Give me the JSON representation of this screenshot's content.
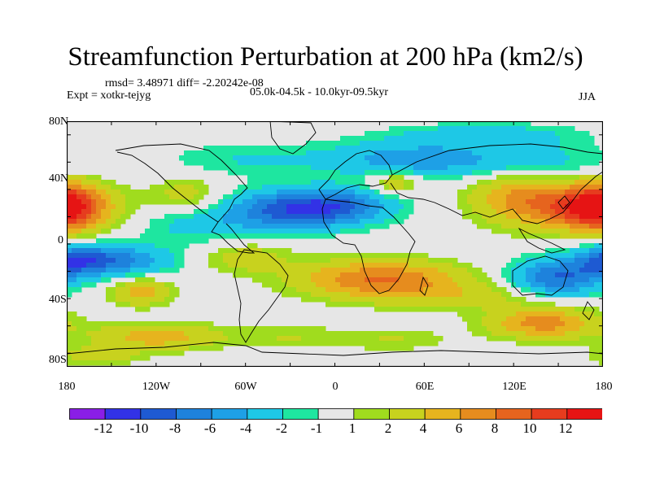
{
  "figure": {
    "title": "Streamfunction Perturbation at 200 hPa (km2/s)",
    "stats": "rmsd= 3.48971 diff= -2.20242e-08",
    "experiment": "Expt = xotkr-tejyg",
    "period": "05.0k-04.5k - 10.0kyr-09.5kyr",
    "season": "JJA"
  },
  "axes": {
    "lat_ticks": [
      "80N",
      "40N",
      "0",
      "40S",
      "80S"
    ],
    "lon_ticks": [
      "180",
      "120W",
      "60W",
      "0",
      "60E",
      "120E",
      "180"
    ]
  },
  "colorbar": {
    "labels": [
      "-12",
      "-10",
      "-8",
      "-6",
      "-4",
      "-2",
      "-1",
      "1",
      "2",
      "4",
      "6",
      "8",
      "10",
      "12"
    ],
    "colors": [
      "#8a1ee6",
      "#3232e6",
      "#1e5ad2",
      "#1e82dc",
      "#1ea0e6",
      "#1ec8e6",
      "#1ee6a0",
      "#e6e6e6",
      "#a0dc1e",
      "#c8d21e",
      "#e6b41e",
      "#e68c1e",
      "#e6641e",
      "#e63c1e",
      "#e61414"
    ]
  },
  "chart_data": {
    "type": "heatmap",
    "title": "Streamfunction Perturbation at 200 hPa (km2/s)",
    "projection": "cylindrical equidistant",
    "lon_range": [
      -180,
      180
    ],
    "lat_range": [
      -90,
      90
    ],
    "units": "km2/s",
    "levels": [
      -12,
      -10,
      -8,
      -6,
      -4,
      -2,
      -1,
      1,
      2,
      4,
      6,
      8,
      10,
      12
    ],
    "features": [
      {
        "lon": 170,
        "lat": 27,
        "value": 11,
        "sigma_lon": 28,
        "sigma_lat": 12
      },
      {
        "lon": -180,
        "lat": 28,
        "value": 6,
        "sigma_lon": 14,
        "sigma_lat": 12
      },
      {
        "lon": 120,
        "lat": 35,
        "value": 5,
        "sigma_lon": 22,
        "sigma_lat": 14
      },
      {
        "lon": -30,
        "lat": 25,
        "value": -8,
        "sigma_lon": 28,
        "sigma_lat": 10
      },
      {
        "lon": 5,
        "lat": 28,
        "value": -6,
        "sigma_lon": 26,
        "sigma_lat": 9
      },
      {
        "lon": -90,
        "lat": 15,
        "value": -3,
        "sigma_lon": 30,
        "sigma_lat": 10
      },
      {
        "lon": -150,
        "lat": -12,
        "value": -7,
        "sigma_lon": 28,
        "sigma_lat": 8
      },
      {
        "lon": -175,
        "lat": -12,
        "value": -5,
        "sigma_lon": 15,
        "sigma_lat": 8
      },
      {
        "lon": 150,
        "lat": -25,
        "value": -8,
        "sigma_lon": 22,
        "sigma_lat": 10
      },
      {
        "lon": 30,
        "lat": -25,
        "value": 8,
        "sigma_lon": 38,
        "sigma_lat": 9
      },
      {
        "lon": -60,
        "lat": -10,
        "value": 3,
        "sigma_lon": 22,
        "sigma_lat": 8
      },
      {
        "lon": -130,
        "lat": -35,
        "value": 5,
        "sigma_lon": 14,
        "sigma_lat": 7
      },
      {
        "lon": -100,
        "lat": 35,
        "value": 3,
        "sigma_lon": 16,
        "sigma_lat": 10
      },
      {
        "lon": -60,
        "lat": 62,
        "value": -2,
        "sigma_lon": 40,
        "sigma_lat": 9
      },
      {
        "lon": 50,
        "lat": 62,
        "value": -5,
        "sigma_lon": 40,
        "sigma_lat": 9
      },
      {
        "lon": 40,
        "lat": 45,
        "value": 4,
        "sigma_lon": 12,
        "sigma_lat": 6
      },
      {
        "lon": 130,
        "lat": 60,
        "value": -3,
        "sigma_lon": 38,
        "sigma_lat": 10
      },
      {
        "lon": 80,
        "lat": -38,
        "value": 3,
        "sigma_lon": 50,
        "sigma_lat": 7
      },
      {
        "lon": 140,
        "lat": -58,
        "value": 7,
        "sigma_lon": 26,
        "sigma_lat": 8
      },
      {
        "lon": -120,
        "lat": -68,
        "value": 5,
        "sigma_lon": 30,
        "sigma_lat": 7
      },
      {
        "lon": -30,
        "lat": -68,
        "value": 2,
        "sigma_lon": 28,
        "sigma_lat": 6
      },
      {
        "lon": 40,
        "lat": -70,
        "value": 2,
        "sigma_lon": 25,
        "sigma_lat": 6
      },
      {
        "lon": -160,
        "lat": -82,
        "value": 3,
        "sigma_lon": 20,
        "sigma_lat": 5
      },
      {
        "lon": 100,
        "lat": 80,
        "value": -3,
        "sigma_lon": 45,
        "sigma_lat": 6
      }
    ]
  }
}
